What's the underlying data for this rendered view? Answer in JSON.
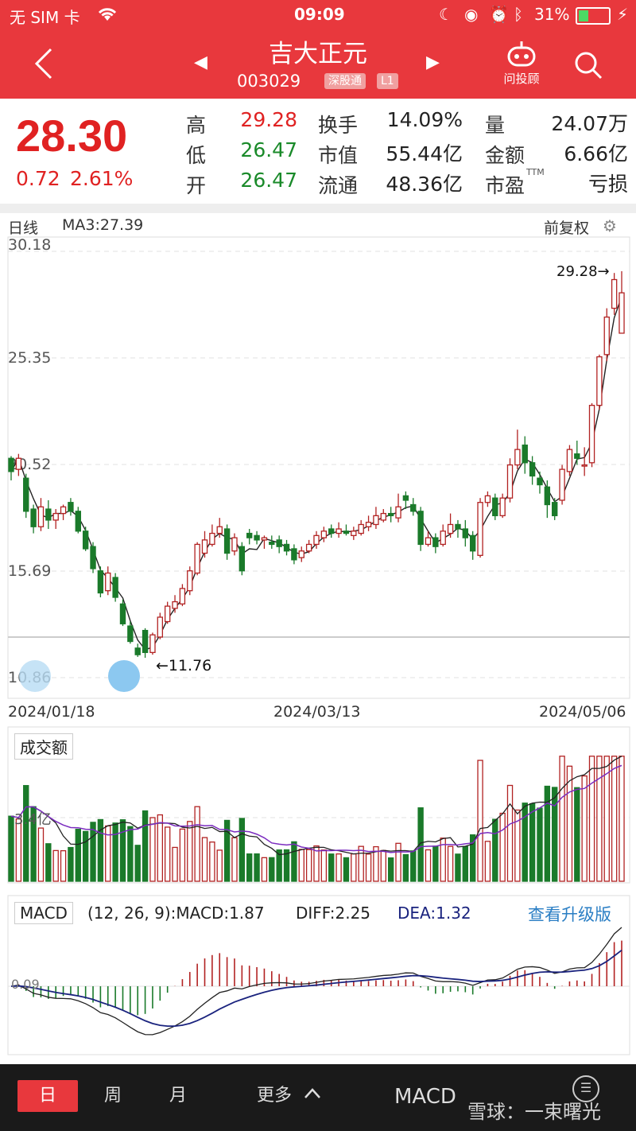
{
  "status": {
    "carrier": "无 SIM 卡",
    "time": "09:09",
    "battery": "31%"
  },
  "header": {
    "title": "吉大正元",
    "code": "003029",
    "tag1": "深股通",
    "tag2": "L1",
    "ask_label": "问投顾"
  },
  "quote": {
    "price": "28.30",
    "change": "0.72",
    "change_pct": "2.61%",
    "rows": [
      {
        "l1": "高",
        "v1": "29.28",
        "l2": "换手",
        "v2": "14.09%",
        "l3": "量",
        "v3": "24.07万"
      },
      {
        "l1": "低",
        "v1": "26.47",
        "l2": "市值",
        "v2": "55.44亿",
        "l3": "金额",
        "v3": "6.66亿"
      },
      {
        "l1": "开",
        "v1": "26.47",
        "l2": "流通",
        "v2": "48.36亿",
        "l3": "市盈",
        "l3sup": "TTM",
        "v3": "亏损"
      }
    ]
  },
  "kline": {
    "period_label": "日线",
    "ma_label": "MA3:27.39",
    "adjust_label": "前复权",
    "y_ticks": [
      "30.18",
      "25.35",
      "20.52",
      "15.69",
      "10.86"
    ],
    "max_label": "29.28→",
    "min_label": "←11.76",
    "dates": [
      "2024/01/18",
      "2024/03/13",
      "2024/05/06"
    ]
  },
  "volume": {
    "title": "成交额",
    "tick": "3.4亿"
  },
  "macd": {
    "title": "MACD",
    "params": "(12, 26, 9):MACD:1.87",
    "diff": "DIFF:2.25",
    "dea": "DEA:1.32",
    "upgrade": "查看升级版",
    "zero_tick": "0.09"
  },
  "bottom": {
    "tabs": [
      "日",
      "周",
      "月",
      "更多"
    ],
    "indicator": "MACD",
    "watermark": "雪球：一束曙光"
  },
  "colors": {
    "brand": "#e8383d",
    "up": "#b22222",
    "down": "#1a7a2a"
  },
  "chart_data": {
    "type": "candlestick",
    "note": "daily OHLC (approx)",
    "candles": [
      [
        20.8,
        20.2,
        20.9,
        19.8
      ],
      [
        20.3,
        20.8,
        21.0,
        20.0
      ],
      [
        19.9,
        18.4,
        20.1,
        18.1
      ],
      [
        18.5,
        17.7,
        18.7,
        17.4
      ],
      [
        17.7,
        18.6,
        19.0,
        17.5
      ],
      [
        18.5,
        18.0,
        18.9,
        17.6
      ],
      [
        18.0,
        18.3,
        18.5,
        17.6
      ],
      [
        18.3,
        18.6,
        18.7,
        18.0
      ],
      [
        18.8,
        18.4,
        19.0,
        18.2
      ],
      [
        18.4,
        17.5,
        18.6,
        17.4
      ],
      [
        17.5,
        16.7,
        17.7,
        16.6
      ],
      [
        16.8,
        15.8,
        17.0,
        15.6
      ],
      [
        15.7,
        14.7,
        15.9,
        14.5
      ],
      [
        14.8,
        15.6,
        15.9,
        14.6
      ],
      [
        15.4,
        14.5,
        15.6,
        14.3
      ],
      [
        14.2,
        13.3,
        14.4,
        13.2
      ],
      [
        13.2,
        12.5,
        13.4,
        12.4
      ],
      [
        12.2,
        11.9,
        12.4,
        11.8
      ],
      [
        13.0,
        12.0,
        13.1,
        11.76
      ],
      [
        12.0,
        12.8,
        12.9,
        11.9
      ],
      [
        12.7,
        13.6,
        13.8,
        12.6
      ],
      [
        13.4,
        14.1,
        14.3,
        13.3
      ],
      [
        14.0,
        14.3,
        14.6,
        13.8
      ],
      [
        14.2,
        14.9,
        15.1,
        14.1
      ],
      [
        14.8,
        15.7,
        15.9,
        14.6
      ],
      [
        15.6,
        16.9,
        17.0,
        15.5
      ],
      [
        16.5,
        17.1,
        17.5,
        16.3
      ],
      [
        16.9,
        17.4,
        17.8,
        16.8
      ],
      [
        17.4,
        17.7,
        18.1,
        17.2
      ],
      [
        17.6,
        16.5,
        17.8,
        16.2
      ],
      [
        16.6,
        17.2,
        17.4,
        16.4
      ],
      [
        16.8,
        15.7,
        17.0,
        15.5
      ],
      [
        17.4,
        17.2,
        17.6,
        16.9
      ],
      [
        17.3,
        17.1,
        17.5,
        16.9
      ],
      [
        17.1,
        17.2,
        17.3,
        16.7
      ],
      [
        17.0,
        16.9,
        17.3,
        16.7
      ],
      [
        17.1,
        16.8,
        17.3,
        16.5
      ],
      [
        16.9,
        16.6,
        17.1,
        16.4
      ],
      [
        16.7,
        16.2,
        16.9,
        16.0
      ],
      [
        16.3,
        16.6,
        16.8,
        16.1
      ],
      [
        16.6,
        16.9,
        17.1,
        16.5
      ],
      [
        16.9,
        17.3,
        17.5,
        16.7
      ],
      [
        17.2,
        17.5,
        17.7,
        17.0
      ],
      [
        17.6,
        17.4,
        17.8,
        17.2
      ],
      [
        17.4,
        17.6,
        17.9,
        17.2
      ],
      [
        17.5,
        17.4,
        17.8,
        17.3
      ],
      [
        17.3,
        17.5,
        17.7,
        17.1
      ],
      [
        17.4,
        17.8,
        18.0,
        17.3
      ],
      [
        17.7,
        17.9,
        18.2,
        17.5
      ],
      [
        17.8,
        18.2,
        18.6,
        17.6
      ],
      [
        18.0,
        18.3,
        18.5,
        17.9
      ],
      [
        18.3,
        18.2,
        18.6,
        17.9
      ],
      [
        18.1,
        18.6,
        19.2,
        17.9
      ],
      [
        19.1,
        18.9,
        19.3,
        18.5
      ],
      [
        18.7,
        18.4,
        19.0,
        18.2
      ],
      [
        18.4,
        16.9,
        18.6,
        16.6
      ],
      [
        16.9,
        17.2,
        17.5,
        16.8
      ],
      [
        17.2,
        16.8,
        17.4,
        16.5
      ],
      [
        16.9,
        17.5,
        17.8,
        16.8
      ],
      [
        17.4,
        17.8,
        18.3,
        17.2
      ],
      [
        17.8,
        17.6,
        18.0,
        17.2
      ],
      [
        17.6,
        17.2,
        18.0,
        16.8
      ],
      [
        17.3,
        16.6,
        17.5,
        16.2
      ],
      [
        16.4,
        18.8,
        19.0,
        16.3
      ],
      [
        18.8,
        19.1,
        19.3,
        18.6
      ],
      [
        19.0,
        18.2,
        19.2,
        18.0
      ],
      [
        18.2,
        19.0,
        19.2,
        18.1
      ],
      [
        19.0,
        20.5,
        20.8,
        18.8
      ],
      [
        20.5,
        21.2,
        22.1,
        20.3
      ],
      [
        21.4,
        20.6,
        21.8,
        20.1
      ],
      [
        20.6,
        20.0,
        20.9,
        19.6
      ],
      [
        19.9,
        19.6,
        20.2,
        19.2
      ],
      [
        19.5,
        18.7,
        19.8,
        18.1
      ],
      [
        18.8,
        18.2,
        19.0,
        18.0
      ],
      [
        18.9,
        20.3,
        20.5,
        18.7
      ],
      [
        20.2,
        21.2,
        21.4,
        20.0
      ],
      [
        21.0,
        20.8,
        21.6,
        20.5
      ],
      [
        20.5,
        20.5,
        21.3,
        20.0
      ],
      [
        20.6,
        23.2,
        23.3,
        20.4
      ],
      [
        23.2,
        25.4,
        25.5,
        23.0
      ],
      [
        25.5,
        27.2,
        27.6,
        25.2
      ],
      [
        27.6,
        28.9,
        29.2,
        27.3
      ],
      [
        26.47,
        28.3,
        29.28,
        26.47
      ]
    ],
    "ma3": 27.39,
    "high": 29.28,
    "low": 11.76,
    "y_axis": [
      10.86,
      30.18
    ],
    "x_labels": [
      "2024/01/18",
      "2024/03/13",
      "2024/05/06"
    ],
    "volume_unit": "亿",
    "volume_tick": 3.4,
    "macd": {
      "macd": 1.87,
      "diff": 2.25,
      "dea": 1.32
    }
  }
}
